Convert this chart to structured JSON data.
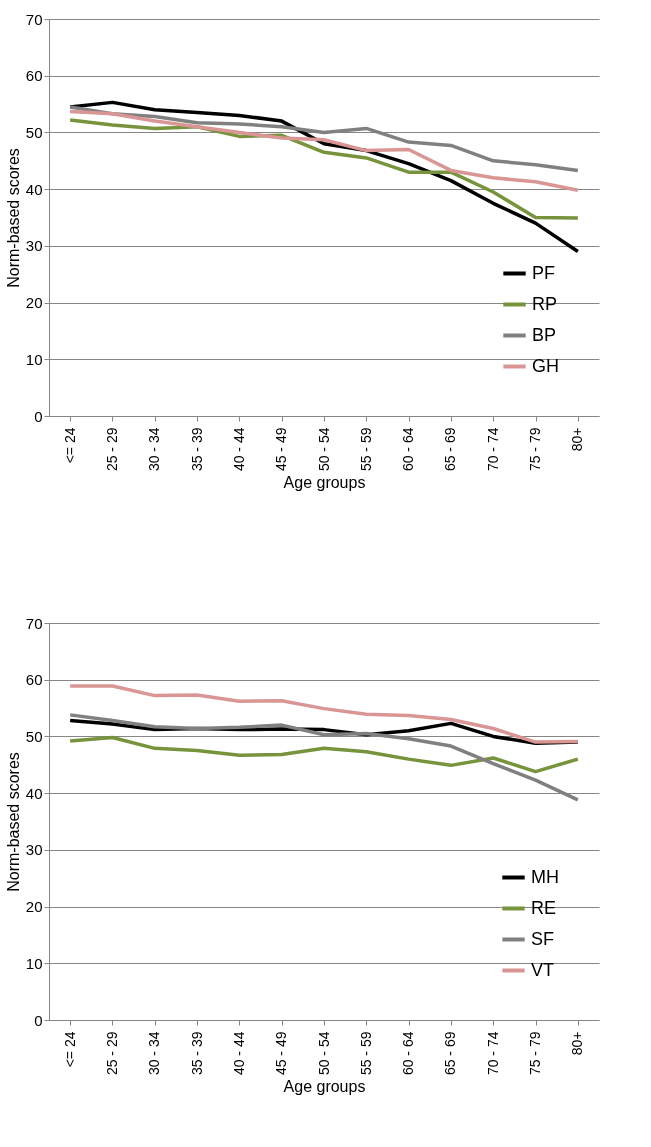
{
  "chart_data": [
    {
      "type": "line",
      "xlabel": "Age groups",
      "ylabel": "Norm-based scores",
      "categories": [
        "<= 24",
        "25 - 29",
        "30 - 34",
        "35 - 39",
        "40 - 44",
        "45 - 49",
        "50 - 54",
        "55 - 59",
        "60 - 64",
        "65 - 69",
        "70 - 74",
        "75 - 79",
        "80+"
      ],
      "ylim": [
        0,
        70
      ],
      "yticks": [
        0,
        10,
        20,
        30,
        40,
        50,
        60,
        70
      ],
      "grid": "y",
      "legend": "bottom right",
      "marker": "none",
      "line_style": "solid",
      "series": [
        {
          "name": "PF",
          "color": "#000000",
          "values": [
            54.5,
            55.3,
            54,
            53.5,
            53,
            52,
            48,
            46.8,
            44.5,
            41.5,
            37.5,
            34,
            29
          ]
        },
        {
          "name": "RP",
          "color": "#77933c",
          "values": [
            52.2,
            51.3,
            50.7,
            51,
            49.3,
            49.5,
            46.5,
            45.5,
            43,
            43,
            39.5,
            35,
            34.9
          ]
        },
        {
          "name": "BP",
          "color": "#808080",
          "values": [
            54.5,
            53.3,
            52.8,
            51.7,
            51.5,
            51,
            50,
            50.7,
            48.3,
            47.7,
            45,
            44.3,
            43.3
          ]
        },
        {
          "name": "GH",
          "color": "#d99694",
          "values": [
            53.7,
            53.3,
            52,
            51,
            50,
            49,
            48.7,
            46.8,
            47,
            43.3,
            42,
            41.3,
            39.8
          ]
        }
      ]
    },
    {
      "type": "line",
      "xlabel": "Age groups",
      "ylabel": "Norm-based scores",
      "categories": [
        "<= 24",
        "25 - 29",
        "30 - 34",
        "35 - 39",
        "40 - 44",
        "45 - 49",
        "50 - 54",
        "55 - 59",
        "60 - 64",
        "65 - 69",
        "70 - 74",
        "75 - 79",
        "80+"
      ],
      "ylim": [
        0,
        70
      ],
      "yticks": [
        0,
        10,
        20,
        30,
        40,
        50,
        60,
        70
      ],
      "grid": "y",
      "legend": "bottom right",
      "marker": "none",
      "line_style": "solid",
      "series": [
        {
          "name": "MH",
          "color": "#000000",
          "values": [
            52.8,
            52.2,
            51.2,
            51.4,
            51.2,
            51.3,
            51.2,
            50.3,
            51,
            52.3,
            50,
            48.8,
            49
          ]
        },
        {
          "name": "RE",
          "color": "#77933c",
          "values": [
            49.2,
            49.8,
            47.9,
            47.5,
            46.7,
            46.8,
            47.9,
            47.3,
            46,
            44.9,
            46.2,
            43.8,
            46
          ]
        },
        {
          "name": "SF",
          "color": "#808080",
          "values": [
            53.8,
            52.8,
            51.7,
            51.4,
            51.6,
            52,
            50.3,
            50.5,
            49.6,
            48.3,
            45.2,
            42.3,
            38.8
          ]
        },
        {
          "name": "VT",
          "color": "#d99694",
          "values": [
            58.9,
            58.9,
            57.2,
            57.3,
            56.2,
            56.3,
            54.9,
            53.9,
            53.7,
            53,
            51.4,
            49,
            49.1
          ]
        }
      ]
    }
  ]
}
